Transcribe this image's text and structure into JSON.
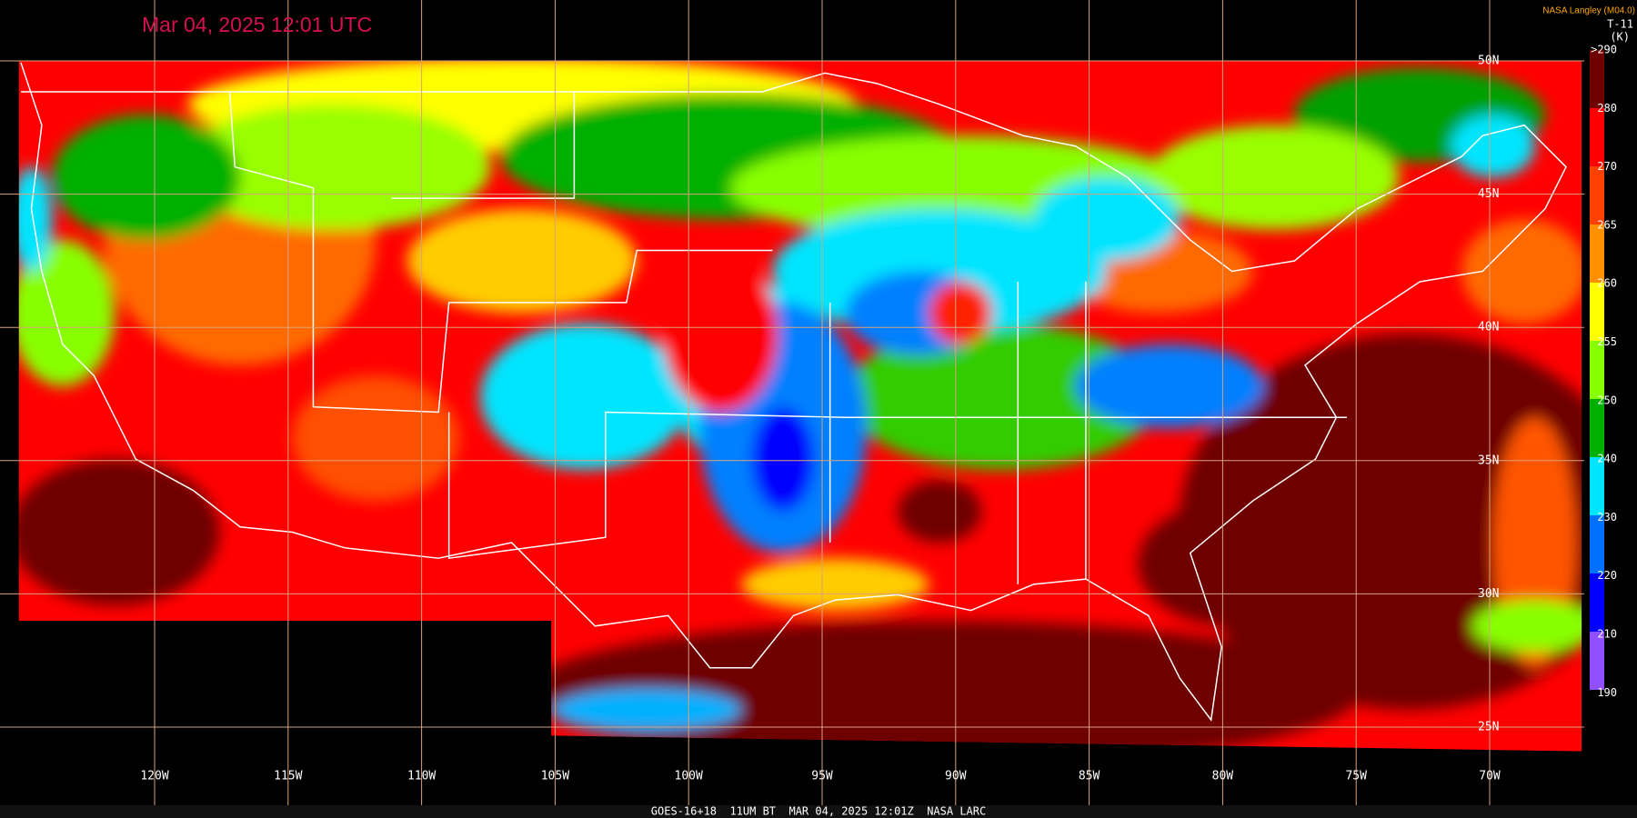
{
  "header": {
    "title": "Mar 04, 2025 12:01 UTC"
  },
  "map": {
    "longitude_labels": [
      "120W",
      "115W",
      "110W",
      "105W",
      "100W",
      "95W",
      "90W",
      "85W",
      "80W",
      "75W",
      "70W"
    ],
    "latitude_labels": [
      "50N",
      "45N",
      "40N",
      "35N",
      "30N",
      "25N"
    ]
  },
  "legend": {
    "source": "NASA Langley (M04.0)",
    "channel": "T-11",
    "unit": "(K)",
    "labels": [
      ">290",
      "280",
      "270",
      "265",
      "260",
      "255",
      "250",
      "240",
      "230",
      "220",
      "210",
      "190"
    ]
  },
  "footer": "GOES-16+18  11UM BT  MAR 04, 2025 12:01Z  NASA LARC"
}
